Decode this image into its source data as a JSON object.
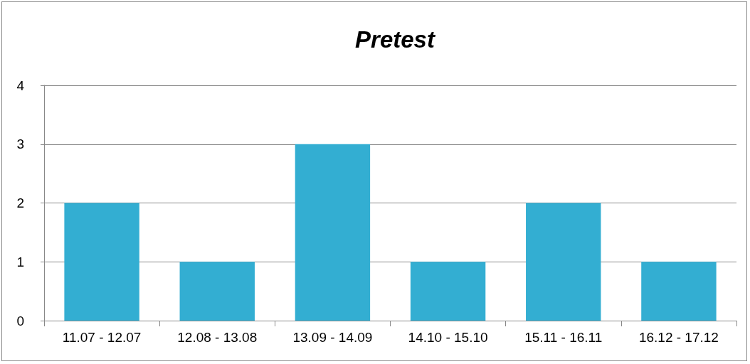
{
  "chart_data": {
    "type": "bar",
    "title": "Pretest",
    "categories": [
      "11.07 - 12.07",
      "12.08 - 13.08",
      "13.09 - 14.09",
      "14.10 - 15.10",
      "15.11 - 16.11",
      "16.12 - 17.12"
    ],
    "values": [
      2,
      1,
      3,
      1,
      2,
      1
    ],
    "color": "#33aed2",
    "ylim": [
      0,
      4
    ],
    "yticks": [
      0,
      1,
      2,
      3,
      4
    ],
    "grid": "y"
  }
}
